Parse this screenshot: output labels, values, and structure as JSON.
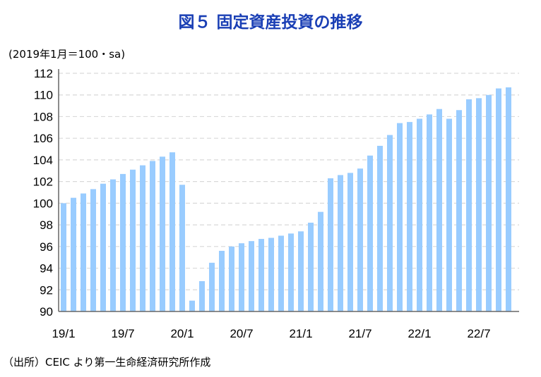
{
  "title": "図５ 固定資産投資の推移",
  "unit_label": "(2019年1月＝100・sa)",
  "source": "（出所）CEIC より第一生命経済研究所作成",
  "chart_data": {
    "type": "bar",
    "title": "図５ 固定資産投資の推移",
    "ylabel": "(2019年1月＝100・sa)",
    "ylim": [
      90,
      112
    ],
    "yticks": [
      90,
      92,
      94,
      96,
      98,
      100,
      102,
      104,
      106,
      108,
      110,
      112
    ],
    "xtick_labels": [
      "19/1",
      "19/7",
      "20/1",
      "20/7",
      "21/1",
      "21/7",
      "22/1",
      "22/7"
    ],
    "grid": true,
    "bar_color": "#99ccff",
    "categories": [
      "19/1",
      "19/2",
      "19/3",
      "19/4",
      "19/5",
      "19/6",
      "19/7",
      "19/8",
      "19/9",
      "19/10",
      "19/11",
      "19/12",
      "20/1",
      "20/2",
      "20/3",
      "20/4",
      "20/5",
      "20/6",
      "20/7",
      "20/8",
      "20/9",
      "20/10",
      "20/11",
      "20/12",
      "21/1",
      "21/2",
      "21/3",
      "21/4",
      "21/5",
      "21/6",
      "21/7",
      "21/8",
      "21/9",
      "21/10",
      "21/11",
      "21/12",
      "22/1",
      "22/2",
      "22/3",
      "22/4",
      "22/5",
      "22/6",
      "22/7",
      "22/8",
      "22/9",
      "22/10"
    ],
    "values": [
      100.0,
      100.5,
      100.9,
      101.3,
      101.8,
      102.2,
      102.7,
      103.1,
      103.5,
      103.9,
      104.3,
      104.7,
      101.7,
      91.0,
      92.8,
      94.5,
      95.6,
      96.0,
      96.3,
      96.5,
      96.7,
      96.8,
      97.0,
      97.2,
      97.4,
      98.2,
      99.2,
      102.3,
      102.6,
      102.8,
      103.2,
      104.4,
      105.3,
      106.3,
      107.4,
      107.5,
      107.8,
      108.2,
      108.7,
      107.8,
      108.6,
      109.6,
      109.7,
      110.0,
      110.6,
      110.7
    ]
  }
}
